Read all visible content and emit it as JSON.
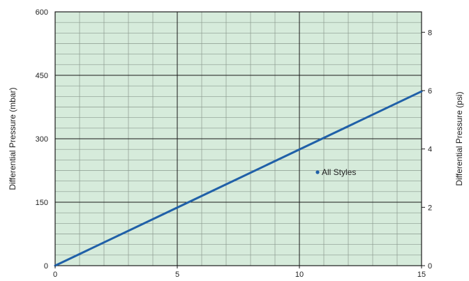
{
  "chart_data": {
    "type": "line",
    "title": "",
    "xlabel": "",
    "ylabel": "Differential Pressure (mbar)",
    "y2label": "Differential Pressure (psi)",
    "xlim": [
      0,
      15
    ],
    "ylim": [
      0,
      600
    ],
    "y2lim": [
      0,
      8.7
    ],
    "x_ticks": [
      "0",
      "5",
      "10",
      "15"
    ],
    "y_ticks": [
      "0",
      "150",
      "300",
      "450",
      "600"
    ],
    "y2_ticks": [
      "0",
      "2",
      "4",
      "6",
      "8"
    ],
    "grid": true,
    "legend_position": "center-right",
    "series": [
      {
        "name": "All Styles",
        "x": [
          0,
          15
        ],
        "y": [
          0,
          412
        ]
      }
    ],
    "colors": {
      "plot_background": "#d6ebdb",
      "grid_minor": "#8a9a8e",
      "grid_major": "#1a1a1a",
      "line": "#2060a8"
    }
  }
}
